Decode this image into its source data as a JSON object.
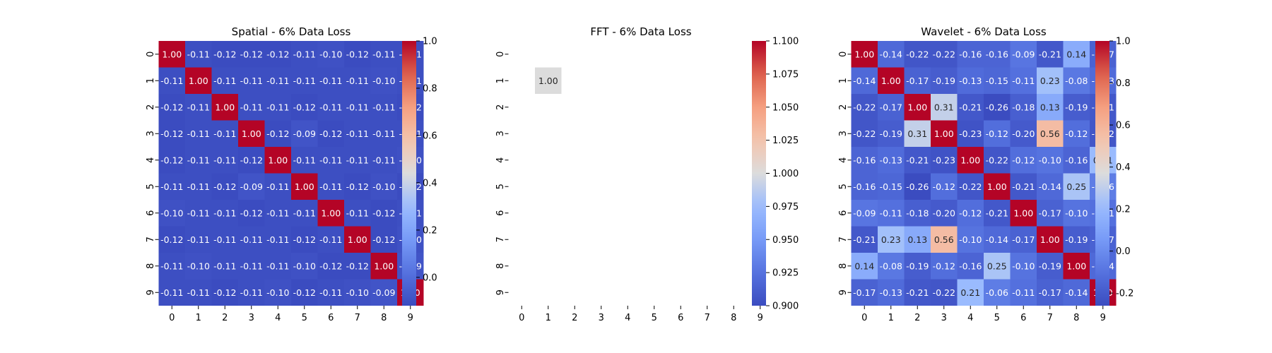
{
  "chart_data": [
    {
      "type": "heatmap",
      "title": "Spatial - 6% Data Loss",
      "x_ticks": [
        "0",
        "1",
        "2",
        "3",
        "4",
        "5",
        "6",
        "7",
        "8",
        "9"
      ],
      "y_ticks": [
        "0",
        "1",
        "2",
        "3",
        "4",
        "5",
        "6",
        "7",
        "8",
        "9"
      ],
      "colormap": "coolwarm",
      "vmin": -0.12,
      "vmax": 1.0,
      "colorbar_ticks": [
        "0.0",
        "0.2",
        "0.4",
        "0.6",
        "0.8",
        "1.0"
      ],
      "values": [
        [
          1.0,
          -0.11,
          -0.12,
          -0.12,
          -0.12,
          -0.11,
          -0.1,
          -0.12,
          -0.11,
          -0.11
        ],
        [
          -0.11,
          1.0,
          -0.11,
          -0.11,
          -0.11,
          -0.11,
          -0.11,
          -0.11,
          -0.1,
          -0.11
        ],
        [
          -0.12,
          -0.11,
          1.0,
          -0.11,
          -0.11,
          -0.12,
          -0.11,
          -0.11,
          -0.11,
          -0.12
        ],
        [
          -0.12,
          -0.11,
          -0.11,
          1.0,
          -0.12,
          -0.09,
          -0.12,
          -0.11,
          -0.11,
          -0.11
        ],
        [
          -0.12,
          -0.11,
          -0.11,
          -0.12,
          1.0,
          -0.11,
          -0.11,
          -0.11,
          -0.11,
          -0.1
        ],
        [
          -0.11,
          -0.11,
          -0.12,
          -0.09,
          -0.11,
          1.0,
          -0.11,
          -0.12,
          -0.1,
          -0.12
        ],
        [
          -0.1,
          -0.11,
          -0.11,
          -0.12,
          -0.11,
          -0.11,
          1.0,
          -0.11,
          -0.12,
          -0.11
        ],
        [
          -0.12,
          -0.11,
          -0.11,
          -0.11,
          -0.11,
          -0.12,
          -0.11,
          1.0,
          -0.12,
          -0.1
        ],
        [
          -0.11,
          -0.1,
          -0.11,
          -0.11,
          -0.11,
          -0.1,
          -0.12,
          -0.12,
          1.0,
          -0.09
        ],
        [
          -0.11,
          -0.11,
          -0.12,
          -0.11,
          -0.1,
          -0.12,
          -0.11,
          -0.1,
          -0.09,
          1.0
        ]
      ]
    },
    {
      "type": "heatmap",
      "title": "FFT - 6% Data Loss",
      "x_ticks": [
        "0",
        "1",
        "2",
        "3",
        "4",
        "5",
        "6",
        "7",
        "8",
        "9"
      ],
      "y_ticks": [
        "0",
        "1",
        "2",
        "3",
        "4",
        "5",
        "6",
        "7",
        "8",
        "9"
      ],
      "colormap": "coolwarm",
      "vmin": 0.9,
      "vmax": 1.1,
      "colorbar_ticks": [
        "0.900",
        "0.925",
        "0.950",
        "0.975",
        "1.000",
        "1.025",
        "1.050",
        "1.075",
        "1.100"
      ],
      "values": [
        [
          null,
          null,
          null,
          null,
          null,
          null,
          null,
          null,
          null,
          null
        ],
        [
          null,
          1.0,
          null,
          null,
          null,
          null,
          null,
          null,
          null,
          null
        ],
        [
          null,
          null,
          null,
          null,
          null,
          null,
          null,
          null,
          null,
          null
        ],
        [
          null,
          null,
          null,
          null,
          null,
          null,
          null,
          null,
          null,
          null
        ],
        [
          null,
          null,
          null,
          null,
          null,
          null,
          null,
          null,
          null,
          null
        ],
        [
          null,
          null,
          null,
          null,
          null,
          null,
          null,
          null,
          null,
          null
        ],
        [
          null,
          null,
          null,
          null,
          null,
          null,
          null,
          null,
          null,
          null
        ],
        [
          null,
          null,
          null,
          null,
          null,
          null,
          null,
          null,
          null,
          null
        ],
        [
          null,
          null,
          null,
          null,
          null,
          null,
          null,
          null,
          null,
          null
        ],
        [
          null,
          null,
          null,
          null,
          null,
          null,
          null,
          null,
          null,
          null
        ]
      ]
    },
    {
      "type": "heatmap",
      "title": "Wavelet - 6% Data Loss",
      "x_ticks": [
        "0",
        "1",
        "2",
        "3",
        "4",
        "5",
        "6",
        "7",
        "8",
        "9"
      ],
      "y_ticks": [
        "0",
        "1",
        "2",
        "3",
        "4",
        "5",
        "6",
        "7",
        "8",
        "9"
      ],
      "colormap": "coolwarm",
      "vmin": -0.26,
      "vmax": 1.0,
      "colorbar_ticks": [
        "-0.2",
        "0.0",
        "0.2",
        "0.4",
        "0.6",
        "0.8",
        "1.0"
      ],
      "values": [
        [
          1.0,
          -0.14,
          -0.22,
          -0.22,
          -0.16,
          -0.16,
          -0.09,
          -0.21,
          0.14,
          -0.17
        ],
        [
          -0.14,
          1.0,
          -0.17,
          -0.19,
          -0.13,
          -0.15,
          -0.11,
          0.23,
          -0.08,
          -0.13
        ],
        [
          -0.22,
          -0.17,
          1.0,
          0.31,
          -0.21,
          -0.26,
          -0.18,
          0.13,
          -0.19,
          -0.21
        ],
        [
          -0.22,
          -0.19,
          0.31,
          1.0,
          -0.23,
          -0.12,
          -0.2,
          0.56,
          -0.12,
          -0.22
        ],
        [
          -0.16,
          -0.13,
          -0.21,
          -0.23,
          1.0,
          -0.22,
          -0.12,
          -0.1,
          -0.16,
          0.21
        ],
        [
          -0.16,
          -0.15,
          -0.26,
          -0.12,
          -0.22,
          1.0,
          -0.21,
          -0.14,
          0.25,
          -0.06
        ],
        [
          -0.09,
          -0.11,
          -0.18,
          -0.2,
          -0.12,
          -0.21,
          1.0,
          -0.17,
          -0.1,
          -0.11
        ],
        [
          -0.21,
          0.23,
          0.13,
          0.56,
          -0.1,
          -0.14,
          -0.17,
          1.0,
          -0.19,
          -0.17
        ],
        [
          0.14,
          -0.08,
          -0.19,
          -0.12,
          -0.16,
          0.25,
          -0.1,
          -0.19,
          1.0,
          -0.14
        ],
        [
          -0.17,
          -0.13,
          -0.21,
          -0.22,
          0.21,
          -0.06,
          -0.11,
          -0.17,
          -0.14,
          1.0
        ]
      ]
    }
  ]
}
